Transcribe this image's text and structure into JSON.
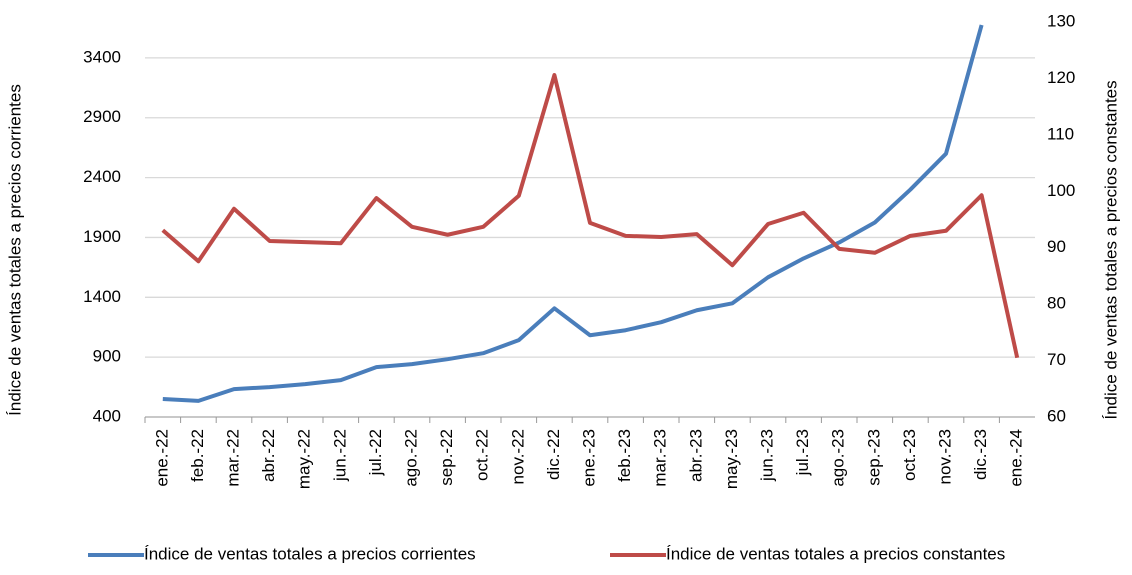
{
  "chart_data": {
    "type": "line",
    "categories": [
      "ene.-22",
      "feb.-22",
      "mar.-22",
      "abr.-22",
      "may.-22",
      "jun.-22",
      "jul.-22",
      "ago.-22",
      "sep.-22",
      "oct.-22",
      "nov.-22",
      "dic.-22",
      "ene.-23",
      "feb.-23",
      "mar.-23",
      "abr.-23",
      "may.-23",
      "jun.-23",
      "jul.-23",
      "ago.-23",
      "sep.-23",
      "oct.-23",
      "nov.-23",
      "dic.-23",
      "ene.-24"
    ],
    "series": [
      {
        "name": "Índice de ventas totales a precios corrientes",
        "color": "#4a7ebb",
        "values": [
          550,
          535,
          633,
          650,
          675,
          708,
          817,
          842,
          883,
          933,
          1042,
          1308,
          1083,
          1125,
          1192,
          1292,
          1350,
          1567,
          1725,
          1858,
          2025,
          2300,
          2600,
          3675,
          null
        ]
      },
      {
        "name": "Índice de ventas totales a precios constantes",
        "color": "#be4b48",
        "axis": "y2",
        "values": [
          93.1,
          87.6,
          96.9,
          91.2,
          91.0,
          90.8,
          98.8,
          93.7,
          92.3,
          93.7,
          99.2,
          120.6,
          94.4,
          92.1,
          91.9,
          92.4,
          86.9,
          94.2,
          96.2,
          89.8,
          89.1,
          92.1,
          93.0,
          99.3,
          70.5
        ]
      }
    ],
    "y_label": "Índice de ventas totales a precios corrientes",
    "y2_label": "Índice de ventas totales a precios constantes",
    "ylim": [
      400,
      3700
    ],
    "yticks": [
      400,
      900,
      1400,
      1900,
      2400,
      2900,
      3400
    ],
    "y2lim": [
      60,
      130
    ],
    "y2ticks": [
      60,
      70,
      80,
      90,
      100,
      110,
      120,
      130
    ],
    "grid": true,
    "legend": "bottom"
  }
}
